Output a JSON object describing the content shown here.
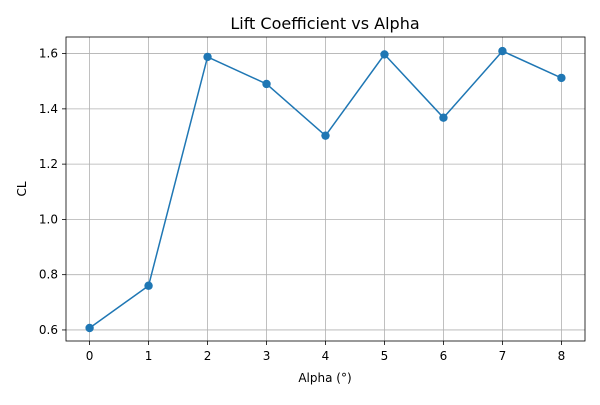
{
  "chart_data": {
    "type": "line",
    "title": "Lift Coefficient vs Alpha",
    "xlabel": "Alpha (°)",
    "ylabel": "CL",
    "x": [
      0,
      1,
      2,
      3,
      4,
      5,
      6,
      7,
      8
    ],
    "series": [
      {
        "values": [
          0.607,
          0.76,
          1.588,
          1.49,
          1.303,
          1.597,
          1.368,
          1.609,
          1.512
        ]
      }
    ],
    "xlim": [
      -0.4,
      8.4
    ],
    "ylim": [
      0.56,
      1.66
    ],
    "xticks": [
      0,
      1,
      2,
      3,
      4,
      5,
      6,
      7,
      8
    ],
    "yticks": [
      0.6,
      0.8,
      1.0,
      1.2,
      1.4,
      1.6
    ],
    "xtick_labels": [
      "0",
      "1",
      "2",
      "3",
      "4",
      "5",
      "6",
      "7",
      "8"
    ],
    "ytick_labels": [
      "0.6",
      "0.8",
      "1.0",
      "1.2",
      "1.4",
      "1.6"
    ],
    "grid": true,
    "marker": "circle",
    "colors": {
      "line": "#1f77b4",
      "marker": "#1f77b4"
    }
  }
}
